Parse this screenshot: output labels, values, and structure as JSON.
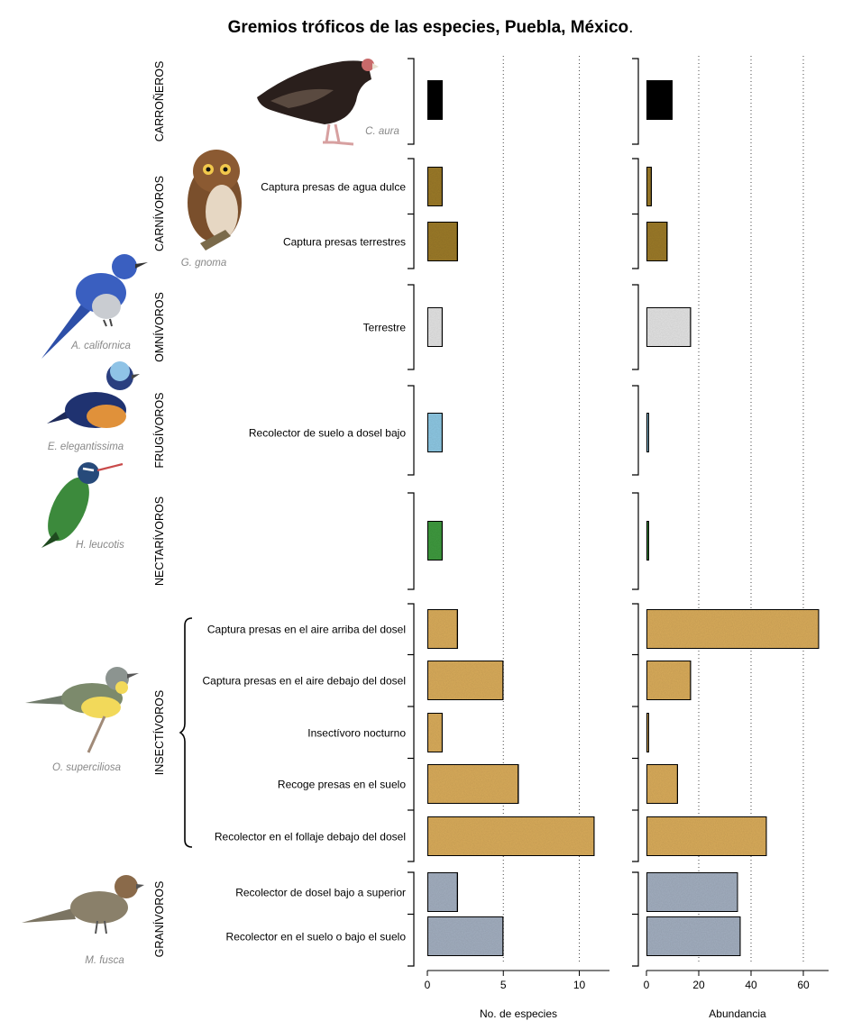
{
  "chart_data": {
    "type": "bar",
    "title": "Gremios tróficos de las especies, Puebla, México",
    "title_suffix": ".",
    "orientation": "horizontal",
    "panels": [
      {
        "xlabel": "No. de especies",
        "xlim": [
          0,
          12
        ],
        "ticks": [
          0,
          5,
          10
        ],
        "grid": "dotted vertical"
      },
      {
        "xlabel": "Abundancia",
        "xlim": [
          0,
          70
        ],
        "ticks": [
          0,
          20,
          40,
          60
        ],
        "grid": "dotted vertical"
      }
    ],
    "groups": [
      {
        "name": "CARROÑEROS",
        "species_label": "C. aura",
        "bird": "turkey-vulture",
        "color": "#000000",
        "items": [
          {
            "label": "",
            "species": 1,
            "abundance": 10
          }
        ]
      },
      {
        "name": "CARNÍVOROS",
        "species_label": "G. gnoma",
        "bird": "pygmy-owl",
        "color": "#9b7a2c",
        "items": [
          {
            "label": "Captura presas de agua dulce",
            "species": 1,
            "abundance": 2
          },
          {
            "label": "Captura presas terrestres",
            "species": 2,
            "abundance": 8
          }
        ]
      },
      {
        "name": "OMNÍVOROS",
        "species_label": "A. californica",
        "bird": "scrub-jay",
        "color": "#e3e3e3",
        "items": [
          {
            "label": "Terrestre",
            "species": 1,
            "abundance": 17
          }
        ]
      },
      {
        "name": "FRUGÍVOROS",
        "species_label": "E. elegantissima",
        "bird": "euphonia",
        "color": "#8ec8e3",
        "items": [
          {
            "label": "Recolector de suelo a dosel bajo",
            "species": 1,
            "abundance": 1
          }
        ]
      },
      {
        "name": "NECTARÍVOROS",
        "species_label": "H. leucotis",
        "bird": "hummingbird",
        "color": "#3f9a3f",
        "items": [
          {
            "label": "",
            "species": 1,
            "abundance": 1
          }
        ]
      },
      {
        "name": "INSECTÍVOROS",
        "species_label": "O. superciliosa",
        "bird": "warbler",
        "color": "#d9ac5b",
        "items": [
          {
            "label": "Captura presas en el aire arriba del dosel",
            "species": 2,
            "abundance": 66
          },
          {
            "label": "Captura presas en el aire debajo del dosel",
            "species": 5,
            "abundance": 17
          },
          {
            "label": "Insectívoro nocturno",
            "species": 1,
            "abundance": 1
          },
          {
            "label": "Recoge presas en el suelo",
            "species": 6,
            "abundance": 12
          },
          {
            "label": "Recolector en el follaje debajo del dosel",
            "species": 11,
            "abundance": 46
          }
        ]
      },
      {
        "name": "GRANÍVOROS",
        "species_label": "M. fusca",
        "bird": "towhee",
        "color": "#a3afc0",
        "items": [
          {
            "label": "Recolector de dosel bajo a superior",
            "species": 2,
            "abundance": 35
          },
          {
            "label": "Recolector en el suelo o bajo el suelo",
            "species": 5,
            "abundance": 36
          }
        ]
      }
    ]
  }
}
